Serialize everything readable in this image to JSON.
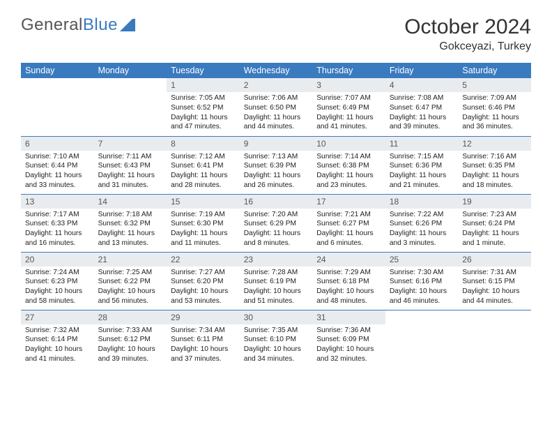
{
  "logo": {
    "word1": "General",
    "word2": "Blue"
  },
  "title": "October 2024",
  "location": "Gokceyazi, Turkey",
  "colors": {
    "header_bg": "#3a7abf",
    "header_text": "#ffffff",
    "daynum_bg": "#e9ecef",
    "border": "#3a7abf",
    "logo_gray": "#555",
    "logo_blue": "#3a7abf"
  },
  "weekdays": [
    "Sunday",
    "Monday",
    "Tuesday",
    "Wednesday",
    "Thursday",
    "Friday",
    "Saturday"
  ],
  "leading_blanks": 2,
  "days": [
    {
      "n": 1,
      "sunrise": "7:05 AM",
      "sunset": "6:52 PM",
      "daylight": "11 hours and 47 minutes."
    },
    {
      "n": 2,
      "sunrise": "7:06 AM",
      "sunset": "6:50 PM",
      "daylight": "11 hours and 44 minutes."
    },
    {
      "n": 3,
      "sunrise": "7:07 AM",
      "sunset": "6:49 PM",
      "daylight": "11 hours and 41 minutes."
    },
    {
      "n": 4,
      "sunrise": "7:08 AM",
      "sunset": "6:47 PM",
      "daylight": "11 hours and 39 minutes."
    },
    {
      "n": 5,
      "sunrise": "7:09 AM",
      "sunset": "6:46 PM",
      "daylight": "11 hours and 36 minutes."
    },
    {
      "n": 6,
      "sunrise": "7:10 AM",
      "sunset": "6:44 PM",
      "daylight": "11 hours and 33 minutes."
    },
    {
      "n": 7,
      "sunrise": "7:11 AM",
      "sunset": "6:43 PM",
      "daylight": "11 hours and 31 minutes."
    },
    {
      "n": 8,
      "sunrise": "7:12 AM",
      "sunset": "6:41 PM",
      "daylight": "11 hours and 28 minutes."
    },
    {
      "n": 9,
      "sunrise": "7:13 AM",
      "sunset": "6:39 PM",
      "daylight": "11 hours and 26 minutes."
    },
    {
      "n": 10,
      "sunrise": "7:14 AM",
      "sunset": "6:38 PM",
      "daylight": "11 hours and 23 minutes."
    },
    {
      "n": 11,
      "sunrise": "7:15 AM",
      "sunset": "6:36 PM",
      "daylight": "11 hours and 21 minutes."
    },
    {
      "n": 12,
      "sunrise": "7:16 AM",
      "sunset": "6:35 PM",
      "daylight": "11 hours and 18 minutes."
    },
    {
      "n": 13,
      "sunrise": "7:17 AM",
      "sunset": "6:33 PM",
      "daylight": "11 hours and 16 minutes."
    },
    {
      "n": 14,
      "sunrise": "7:18 AM",
      "sunset": "6:32 PM",
      "daylight": "11 hours and 13 minutes."
    },
    {
      "n": 15,
      "sunrise": "7:19 AM",
      "sunset": "6:30 PM",
      "daylight": "11 hours and 11 minutes."
    },
    {
      "n": 16,
      "sunrise": "7:20 AM",
      "sunset": "6:29 PM",
      "daylight": "11 hours and 8 minutes."
    },
    {
      "n": 17,
      "sunrise": "7:21 AM",
      "sunset": "6:27 PM",
      "daylight": "11 hours and 6 minutes."
    },
    {
      "n": 18,
      "sunrise": "7:22 AM",
      "sunset": "6:26 PM",
      "daylight": "11 hours and 3 minutes."
    },
    {
      "n": 19,
      "sunrise": "7:23 AM",
      "sunset": "6:24 PM",
      "daylight": "11 hours and 1 minute."
    },
    {
      "n": 20,
      "sunrise": "7:24 AM",
      "sunset": "6:23 PM",
      "daylight": "10 hours and 58 minutes."
    },
    {
      "n": 21,
      "sunrise": "7:25 AM",
      "sunset": "6:22 PM",
      "daylight": "10 hours and 56 minutes."
    },
    {
      "n": 22,
      "sunrise": "7:27 AM",
      "sunset": "6:20 PM",
      "daylight": "10 hours and 53 minutes."
    },
    {
      "n": 23,
      "sunrise": "7:28 AM",
      "sunset": "6:19 PM",
      "daylight": "10 hours and 51 minutes."
    },
    {
      "n": 24,
      "sunrise": "7:29 AM",
      "sunset": "6:18 PM",
      "daylight": "10 hours and 48 minutes."
    },
    {
      "n": 25,
      "sunrise": "7:30 AM",
      "sunset": "6:16 PM",
      "daylight": "10 hours and 46 minutes."
    },
    {
      "n": 26,
      "sunrise": "7:31 AM",
      "sunset": "6:15 PM",
      "daylight": "10 hours and 44 minutes."
    },
    {
      "n": 27,
      "sunrise": "7:32 AM",
      "sunset": "6:14 PM",
      "daylight": "10 hours and 41 minutes."
    },
    {
      "n": 28,
      "sunrise": "7:33 AM",
      "sunset": "6:12 PM",
      "daylight": "10 hours and 39 minutes."
    },
    {
      "n": 29,
      "sunrise": "7:34 AM",
      "sunset": "6:11 PM",
      "daylight": "10 hours and 37 minutes."
    },
    {
      "n": 30,
      "sunrise": "7:35 AM",
      "sunset": "6:10 PM",
      "daylight": "10 hours and 34 minutes."
    },
    {
      "n": 31,
      "sunrise": "7:36 AM",
      "sunset": "6:09 PM",
      "daylight": "10 hours and 32 minutes."
    }
  ],
  "labels": {
    "sunrise": "Sunrise: ",
    "sunset": "Sunset: ",
    "daylight": "Daylight: "
  }
}
